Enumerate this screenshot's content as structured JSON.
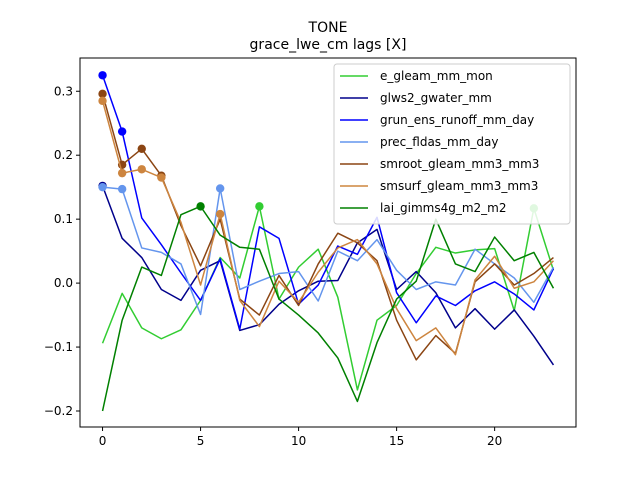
{
  "title": "TONE",
  "subtitle": "grace_lwe_cm lags [X]",
  "chart_data": {
    "type": "line",
    "title": "TONE",
    "subtitle": "grace_lwe_cm lags [X]",
    "xlabel": "",
    "ylabel": "",
    "xlim": [
      -1.15,
      24.15
    ],
    "ylim": [
      -0.225,
      0.352
    ],
    "x_ticks": [
      0,
      5,
      10,
      15,
      20
    ],
    "y_ticks": [
      -0.2,
      -0.1,
      0.0,
      0.1,
      0.2,
      0.3
    ],
    "x_tick_labels": [
      "0",
      "5",
      "10",
      "15",
      "20"
    ],
    "y_tick_labels": [
      "−0.2",
      "−0.1",
      "0.0",
      "0.1",
      "0.2",
      "0.3"
    ],
    "grid": false,
    "legend_position": "top-right",
    "x": [
      0,
      1,
      2,
      3,
      4,
      5,
      6,
      7,
      8,
      9,
      10,
      11,
      12,
      13,
      14,
      15,
      16,
      17,
      18,
      19,
      20,
      21,
      22,
      23
    ],
    "series": [
      {
        "name": "e_gleam_mm_mon",
        "color": "#32cd32",
        "values": [
          -0.094,
          -0.016,
          -0.07,
          -0.087,
          -0.073,
          -0.027,
          0.04,
          0.008,
          0.12,
          -0.025,
          0.025,
          0.053,
          -0.022,
          -0.167,
          -0.058,
          -0.035,
          0.015,
          0.056,
          0.047,
          0.052,
          0.054,
          -0.043,
          0.117,
          0.02
        ],
        "markers": [
          8,
          22
        ]
      },
      {
        "name": "glws2_gwater_mm",
        "color": "#00008b",
        "values": [
          0.152,
          0.07,
          0.04,
          -0.01,
          -0.027,
          0.02,
          0.035,
          -0.074,
          -0.065,
          -0.033,
          -0.012,
          0.003,
          0.004,
          0.063,
          0.084,
          -0.01,
          0.018,
          -0.015,
          -0.07,
          -0.04,
          -0.072,
          -0.042,
          -0.083,
          -0.128
        ],
        "markers": [
          0
        ]
      },
      {
        "name": "grun_ens_runoff_mm_day",
        "color": "#0000ff",
        "values": [
          0.325,
          0.237,
          0.102,
          0.06,
          0.016,
          -0.027,
          0.038,
          -0.072,
          0.088,
          0.07,
          -0.033,
          -0.003,
          0.058,
          0.045,
          0.103,
          -0.015,
          -0.062,
          -0.02,
          -0.035,
          -0.012,
          0.002,
          -0.017,
          -0.042,
          0.023
        ],
        "markers": [
          0,
          1
        ]
      },
      {
        "name": "prec_fldas_mm_day",
        "color": "#6495ed",
        "values": [
          0.15,
          0.147,
          0.055,
          0.048,
          0.03,
          -0.049,
          0.148,
          -0.01,
          0.003,
          0.015,
          0.018,
          -0.028,
          0.05,
          0.035,
          0.068,
          0.02,
          -0.01,
          0.002,
          -0.003,
          0.053,
          0.03,
          0.008,
          -0.03,
          0.025
        ],
        "markers": [
          0,
          1,
          6
        ]
      },
      {
        "name": "smroot_gleam_mm3_mm3",
        "color": "#8b4513",
        "values": [
          0.296,
          0.185,
          0.21,
          0.168,
          0.09,
          0.027,
          0.1,
          -0.025,
          -0.05,
          0.012,
          -0.035,
          0.03,
          0.078,
          0.063,
          0.035,
          -0.058,
          -0.12,
          -0.082,
          -0.11,
          0.002,
          0.03,
          -0.003,
          0.015,
          0.04
        ],
        "markers": [
          0,
          1,
          2,
          3
        ]
      },
      {
        "name": "smsurf_gleam_mm3_mm3",
        "color": "#cd853f",
        "values": [
          0.285,
          0.172,
          0.178,
          0.165,
          0.095,
          -0.003,
          0.108,
          -0.027,
          -0.068,
          0.003,
          -0.03,
          0.017,
          0.055,
          0.068,
          0.03,
          -0.04,
          -0.09,
          -0.07,
          -0.112,
          0.005,
          0.042,
          -0.008,
          0.002,
          0.035
        ],
        "markers": [
          0,
          1,
          2,
          3,
          6
        ]
      },
      {
        "name": "lai_gimms4g_m2_m2",
        "color": "#008000",
        "values": [
          -0.2,
          -0.058,
          0.025,
          0.012,
          0.107,
          0.12,
          0.075,
          0.056,
          0.053,
          -0.025,
          -0.05,
          -0.078,
          -0.117,
          -0.185,
          -0.093,
          -0.025,
          0.003,
          0.1,
          0.03,
          0.018,
          0.072,
          0.035,
          0.048,
          -0.008
        ],
        "markers": [
          5
        ]
      }
    ]
  }
}
